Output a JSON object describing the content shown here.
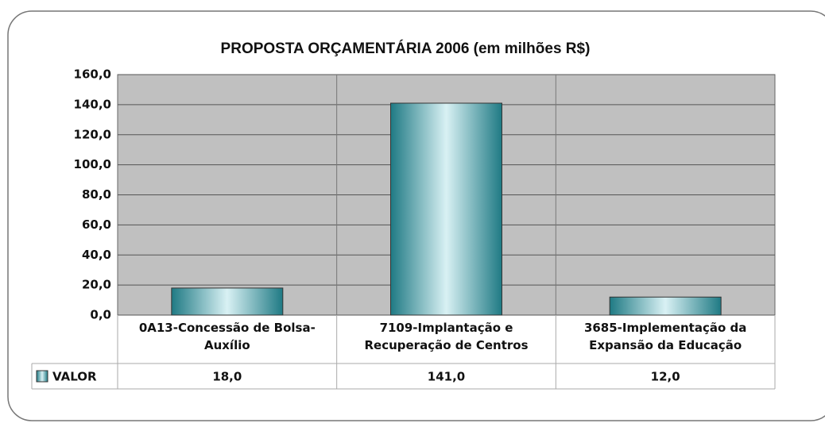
{
  "chart_data": {
    "type": "bar",
    "title": "PROPOSTA ORÇAMENTÁRIA 2006 (em milhões R$)",
    "categories": [
      "0A13-Concessão de Bolsa-Auxílio",
      "7109-Implantação e Recuperação de Centros",
      "3685-Implementação da Expansão da Educação"
    ],
    "series": [
      {
        "name": "VALOR",
        "color": "#3a9aa3",
        "values": [
          18,
          141,
          12
        ],
        "value_labels": [
          "18,0",
          "141,0",
          "12,0"
        ]
      }
    ],
    "ylim": [
      0,
      160
    ],
    "yticks": [
      {
        "value": 0,
        "label": "0,0"
      },
      {
        "value": 20,
        "label": "20,0"
      },
      {
        "value": 40,
        "label": "40,0"
      },
      {
        "value": 60,
        "label": "60,0"
      },
      {
        "value": 80,
        "label": "80,0"
      },
      {
        "value": 100,
        "label": "100,0"
      },
      {
        "value": 120,
        "label": "120,0"
      },
      {
        "value": 140,
        "label": "140,0"
      },
      {
        "value": 160,
        "label": "160,0"
      }
    ],
    "grid": true,
    "data_table": true
  }
}
